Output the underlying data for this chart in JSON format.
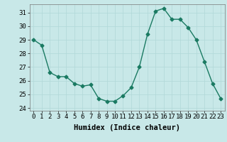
{
  "x": [
    0,
    1,
    2,
    3,
    4,
    5,
    6,
    7,
    8,
    9,
    10,
    11,
    12,
    13,
    14,
    15,
    16,
    17,
    18,
    19,
    20,
    21,
    22,
    23
  ],
  "y": [
    29.0,
    28.6,
    26.6,
    26.3,
    26.3,
    25.8,
    25.6,
    25.7,
    24.7,
    24.5,
    24.5,
    24.9,
    25.5,
    27.0,
    29.4,
    31.1,
    31.3,
    30.5,
    30.5,
    29.9,
    29.0,
    27.4,
    25.8,
    24.7
  ],
  "line_color": "#1a7a62",
  "marker": "D",
  "marker_size": 2.5,
  "bg_color": "#c8e8e8",
  "grid_color": "#b0d8d8",
  "xlabel": "Humidex (Indice chaleur)",
  "xlim": [
    -0.5,
    23.5
  ],
  "ylim": [
    23.8,
    31.6
  ],
  "yticks": [
    24,
    25,
    26,
    27,
    28,
    29,
    30,
    31
  ],
  "xticks": [
    0,
    1,
    2,
    3,
    4,
    5,
    6,
    7,
    8,
    9,
    10,
    11,
    12,
    13,
    14,
    15,
    16,
    17,
    18,
    19,
    20,
    21,
    22,
    23
  ],
  "xtick_labels": [
    "0",
    "1",
    "2",
    "3",
    "4",
    "5",
    "6",
    "7",
    "8",
    "9",
    "10",
    "11",
    "12",
    "13",
    "14",
    "15",
    "16",
    "17",
    "18",
    "19",
    "20",
    "21",
    "22",
    "23"
  ],
  "tick_fontsize": 6.5,
  "xlabel_fontsize": 7.5,
  "line_width": 1.0
}
